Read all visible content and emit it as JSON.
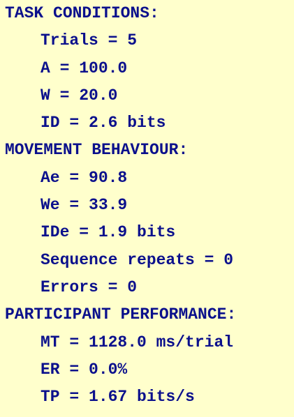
{
  "colors": {
    "background": "#ffffcc",
    "text": "#0b108c"
  },
  "task_conditions": {
    "heading": "TASK CONDITIONS:",
    "trials": "Trials = 5",
    "a": "A = 100.0",
    "w": "W = 20.0",
    "id": "ID = 2.6 bits"
  },
  "movement_behaviour": {
    "heading": "MOVEMENT BEHAVIOUR:",
    "ae": "Ae = 90.8",
    "we": "We = 33.9",
    "ide": "IDe = 1.9 bits",
    "sequence_repeats": "Sequence repeats = 0",
    "errors": "Errors = 0"
  },
  "participant_performance": {
    "heading": "PARTICIPANT PERFORMANCE:",
    "mt": "MT = 1128.0 ms/trial",
    "er": "ER = 0.0%",
    "tp": "TP = 1.67 bits/s"
  }
}
